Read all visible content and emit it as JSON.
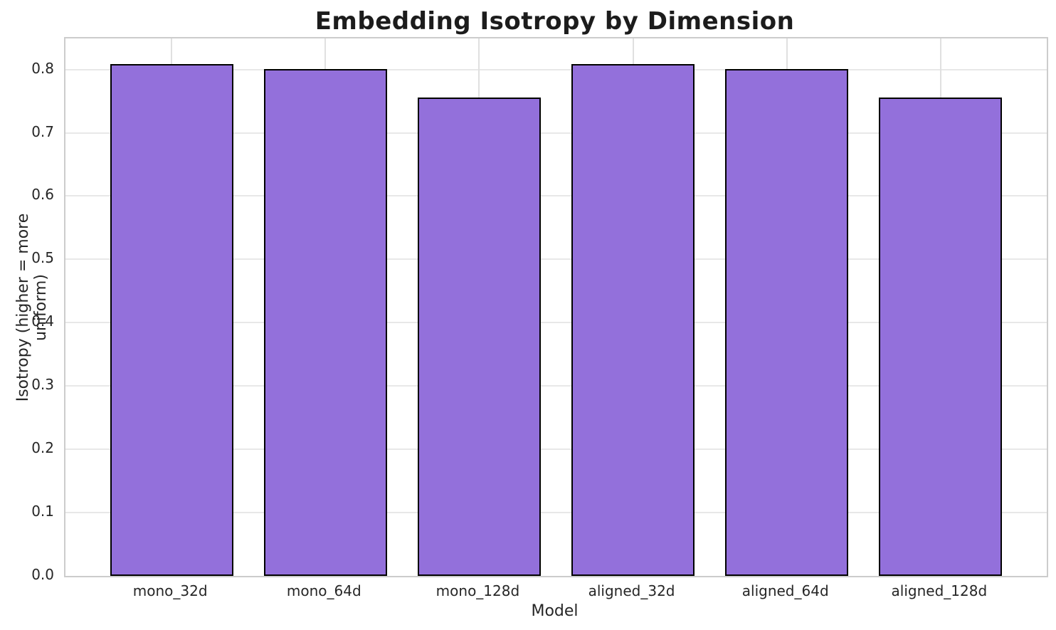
{
  "chart_data": {
    "type": "bar",
    "title": "Embedding Isotropy by Dimension",
    "xlabel": "Model",
    "ylabel": "Isotropy (higher = more uniform)",
    "categories": [
      "mono_32d",
      "mono_64d",
      "mono_128d",
      "aligned_32d",
      "aligned_64d",
      "aligned_128d"
    ],
    "values": [
      0.809,
      0.801,
      0.756,
      0.809,
      0.801,
      0.756
    ],
    "yticks": [
      "0.0",
      "0.1",
      "0.2",
      "0.3",
      "0.4",
      "0.5",
      "0.6",
      "0.7",
      "0.8"
    ],
    "ylim": [
      0,
      0.849
    ],
    "grid": "both",
    "legend": "none",
    "colors": {
      "bar_fill": "#9370DB",
      "bar_edge": "#000000",
      "grid_h": "#e8e8e8",
      "grid_v": "#e0e0e0",
      "spine": "#cccccc",
      "text": "#262626",
      "title_text": "#1c1c1c",
      "background": "#ffffff"
    }
  }
}
